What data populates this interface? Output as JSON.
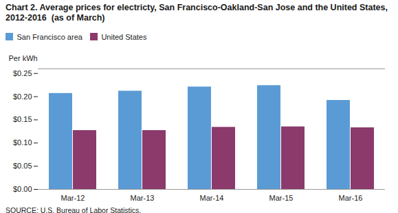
{
  "chart_data": {
    "type": "bar",
    "title": "Chart 2. Average prices for electricty, San Francisco-Oakland-San Jose and the United States, 2012-2016  (as of March)",
    "ylabel": "Per kWh",
    "source": "SOURCE: U.S. Bureau of Labor Statistics.",
    "categories": [
      "Mar-12",
      "Mar-13",
      "Mar-14",
      "Mar-15",
      "Mar-16"
    ],
    "series": [
      {
        "name": "San Francisco area",
        "color": "#5B9BD5",
        "values": [
          0.207,
          0.212,
          0.221,
          0.224,
          0.192
        ]
      },
      {
        "name": "United States",
        "color": "#8B3A6B",
        "values": [
          0.127,
          0.127,
          0.134,
          0.135,
          0.133
        ]
      }
    ],
    "ylim": [
      0.0,
      0.26
    ],
    "yticks": [
      {
        "value": 0.0,
        "label": "$0.00"
      },
      {
        "value": 0.05,
        "label": "$0.05"
      },
      {
        "value": 0.1,
        "label": "$0.10"
      },
      {
        "value": 0.15,
        "label": "$0.15"
      },
      {
        "value": 0.2,
        "label": "$0.20"
      },
      {
        "value": 0.25,
        "label": "$0.25"
      }
    ],
    "legend": "upper left",
    "grid": false
  }
}
